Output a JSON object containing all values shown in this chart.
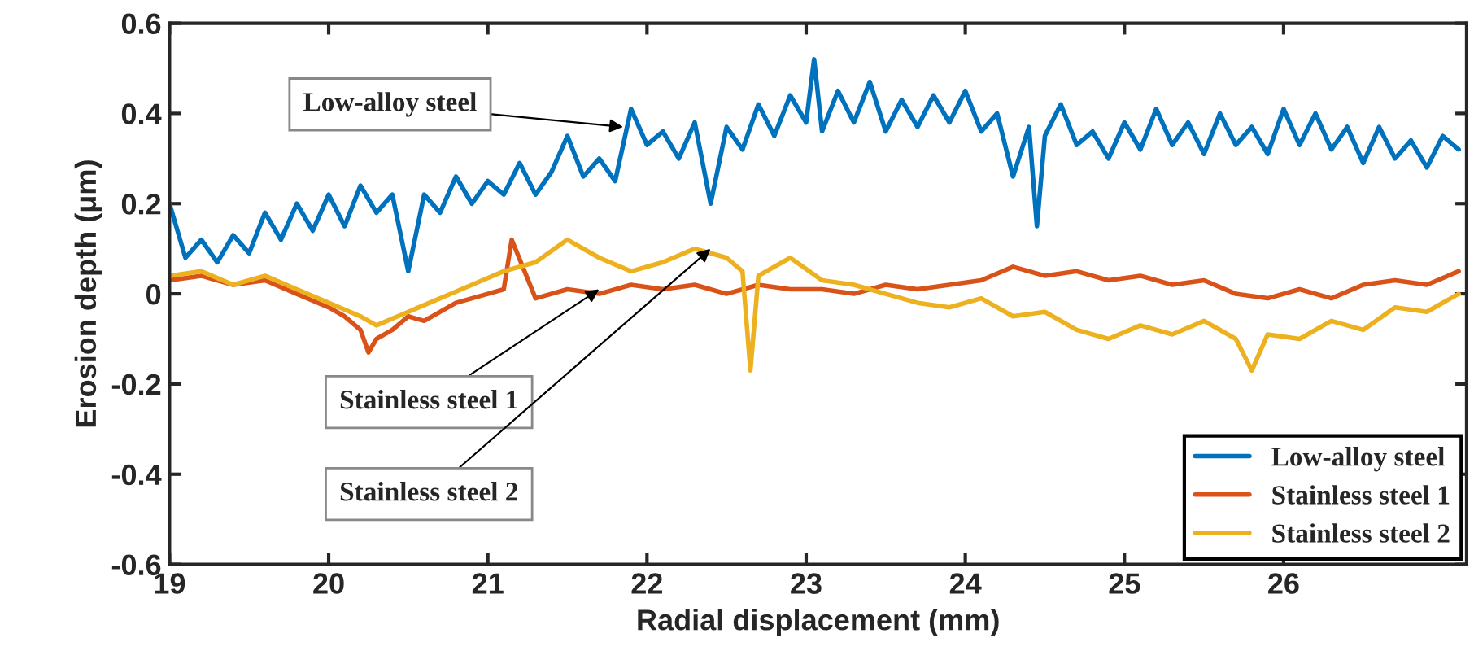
{
  "chart_data": {
    "type": "line",
    "xlabel": "Radial displacement (mm)",
    "ylabel": "Erosion depth (μm)",
    "xlim": [
      19,
      27.15
    ],
    "xticks": [
      19,
      20,
      21,
      22,
      23,
      24,
      25,
      26
    ],
    "ylim": [
      -0.6,
      0.6
    ],
    "yticks": [
      -0.6,
      -0.4,
      -0.2,
      0,
      0.2,
      0.4,
      0.6
    ],
    "grid": false,
    "legend": "bottom right",
    "line_style": "solid",
    "marker": "none",
    "series": [
      {
        "name": "Low-alloy steel",
        "color": "#0072bd",
        "x": [
          19.0,
          19.1,
          19.2,
          19.3,
          19.4,
          19.5,
          19.6,
          19.7,
          19.8,
          19.9,
          20.0,
          20.1,
          20.2,
          20.3,
          20.4,
          20.5,
          20.6,
          20.7,
          20.8,
          20.9,
          21.0,
          21.1,
          21.2,
          21.3,
          21.4,
          21.5,
          21.6,
          21.7,
          21.8,
          21.9,
          22.0,
          22.1,
          22.2,
          22.3,
          22.4,
          22.5,
          22.6,
          22.7,
          22.8,
          22.9,
          23.0,
          23.05,
          23.1,
          23.2,
          23.3,
          23.4,
          23.5,
          23.6,
          23.7,
          23.8,
          23.9,
          24.0,
          24.1,
          24.2,
          24.3,
          24.4,
          24.45,
          24.5,
          24.6,
          24.7,
          24.8,
          24.9,
          25.0,
          25.1,
          25.2,
          25.3,
          25.4,
          25.5,
          25.6,
          25.7,
          25.8,
          25.9,
          26.0,
          26.1,
          26.2,
          26.3,
          26.4,
          26.5,
          26.6,
          26.7,
          26.8,
          26.9,
          27.0,
          27.1
        ],
        "values": [
          0.2,
          0.08,
          0.12,
          0.07,
          0.13,
          0.09,
          0.18,
          0.12,
          0.2,
          0.14,
          0.22,
          0.15,
          0.24,
          0.18,
          0.22,
          0.05,
          0.22,
          0.18,
          0.26,
          0.2,
          0.25,
          0.22,
          0.29,
          0.22,
          0.27,
          0.35,
          0.26,
          0.3,
          0.25,
          0.41,
          0.33,
          0.36,
          0.3,
          0.38,
          0.2,
          0.37,
          0.32,
          0.42,
          0.35,
          0.44,
          0.38,
          0.52,
          0.36,
          0.45,
          0.38,
          0.47,
          0.36,
          0.43,
          0.37,
          0.44,
          0.38,
          0.45,
          0.36,
          0.4,
          0.26,
          0.37,
          0.15,
          0.35,
          0.42,
          0.33,
          0.36,
          0.3,
          0.38,
          0.32,
          0.41,
          0.33,
          0.38,
          0.31,
          0.4,
          0.33,
          0.37,
          0.31,
          0.41,
          0.33,
          0.4,
          0.32,
          0.37,
          0.29,
          0.37,
          0.3,
          0.34,
          0.28,
          0.35,
          0.32
        ]
      },
      {
        "name": "Stainless steel 1",
        "color": "#d95319",
        "x": [
          19.0,
          19.2,
          19.4,
          19.6,
          19.8,
          20.0,
          20.1,
          20.2,
          20.25,
          20.3,
          20.4,
          20.5,
          20.6,
          20.8,
          21.0,
          21.1,
          21.15,
          21.3,
          21.5,
          21.7,
          21.9,
          22.1,
          22.3,
          22.5,
          22.7,
          22.9,
          23.1,
          23.3,
          23.5,
          23.7,
          23.9,
          24.1,
          24.3,
          24.5,
          24.7,
          24.9,
          25.1,
          25.3,
          25.5,
          25.7,
          25.9,
          26.1,
          26.3,
          26.5,
          26.7,
          26.9,
          27.1
        ],
        "values": [
          0.03,
          0.04,
          0.02,
          0.03,
          0.0,
          -0.03,
          -0.05,
          -0.08,
          -0.13,
          -0.1,
          -0.08,
          -0.05,
          -0.06,
          -0.02,
          0.0,
          0.01,
          0.12,
          -0.01,
          0.01,
          0.0,
          0.02,
          0.01,
          0.02,
          0.0,
          0.02,
          0.01,
          0.01,
          0.0,
          0.02,
          0.01,
          0.02,
          0.03,
          0.06,
          0.04,
          0.05,
          0.03,
          0.04,
          0.02,
          0.03,
          0.0,
          -0.01,
          0.01,
          -0.01,
          0.02,
          0.03,
          0.02,
          0.05
        ]
      },
      {
        "name": "Stainless steel 2",
        "color": "#edb120",
        "x": [
          19.0,
          19.2,
          19.4,
          19.6,
          19.8,
          20.0,
          20.2,
          20.3,
          20.5,
          20.7,
          20.9,
          21.1,
          21.3,
          21.5,
          21.7,
          21.9,
          22.1,
          22.3,
          22.5,
          22.6,
          22.65,
          22.7,
          22.9,
          23.1,
          23.3,
          23.5,
          23.7,
          23.9,
          24.1,
          24.3,
          24.5,
          24.7,
          24.9,
          25.1,
          25.3,
          25.5,
          25.7,
          25.8,
          25.9,
          26.1,
          26.3,
          26.5,
          26.7,
          26.9,
          27.1
        ],
        "values": [
          0.04,
          0.05,
          0.02,
          0.04,
          0.01,
          -0.02,
          -0.05,
          -0.07,
          -0.04,
          -0.01,
          0.02,
          0.05,
          0.07,
          0.12,
          0.08,
          0.05,
          0.07,
          0.1,
          0.08,
          0.05,
          -0.17,
          0.04,
          0.08,
          0.03,
          0.02,
          0.0,
          -0.02,
          -0.03,
          -0.01,
          -0.05,
          -0.04,
          -0.08,
          -0.1,
          -0.07,
          -0.09,
          -0.06,
          -0.1,
          -0.17,
          -0.09,
          -0.1,
          -0.06,
          -0.08,
          -0.03,
          -0.04,
          0.0
        ]
      }
    ],
    "annotations": [
      {
        "text": "Low-alloy steel",
        "x": 21.85,
        "y": 0.37
      },
      {
        "text": "Stainless steel 1",
        "x": 21.7,
        "y": 0.01
      },
      {
        "text": "Stainless steel 2",
        "x": 22.4,
        "y": 0.1
      }
    ]
  }
}
